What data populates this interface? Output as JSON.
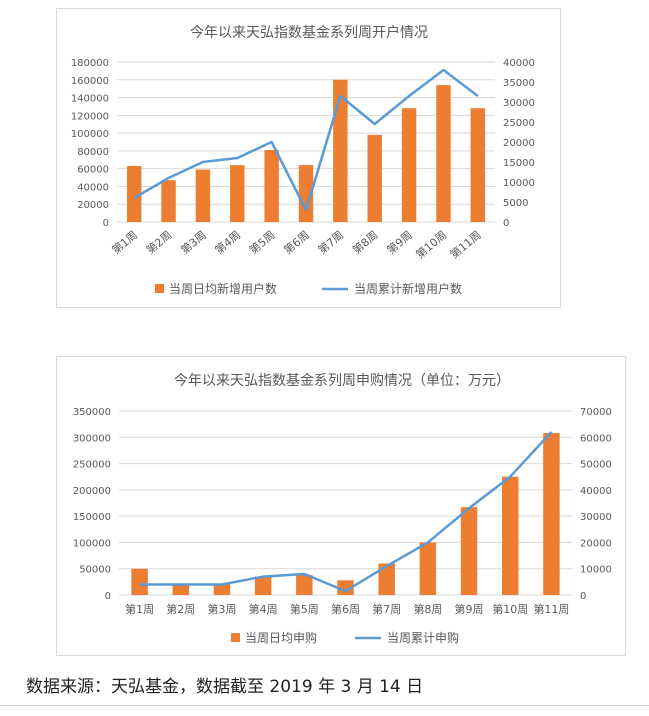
{
  "colors": {
    "bar": "#ED7D31",
    "line": "#5B9BD5",
    "grid": "#D9D9D9",
    "text": "#595959"
  },
  "chart_data": [
    {
      "type": "bar",
      "title": "今年以来天弘指数基金系列周开户情况",
      "categories": [
        "第1周",
        "第2周",
        "第3周",
        "第4周",
        "第5周",
        "第6周",
        "第7周",
        "第8周",
        "第9周",
        "第10周",
        "第11周"
      ],
      "series": [
        {
          "name": "当周日均新增用户数",
          "type": "bar",
          "axis": "left",
          "values": [
            63000,
            47000,
            59000,
            64000,
            81000,
            64000,
            160000,
            98000,
            128000,
            154000,
            128000
          ]
        },
        {
          "name": "当周累计新增用户数",
          "type": "line",
          "axis": "right",
          "values": [
            6000,
            11000,
            15000,
            16000,
            20000,
            3000,
            31500,
            24500,
            31500,
            38000,
            31500
          ]
        }
      ],
      "ylim_left": [
        0,
        180000
      ],
      "yticks_left": [
        "0",
        "20000",
        "40000",
        "60000",
        "80000",
        "100000",
        "120000",
        "140000",
        "160000",
        "180000"
      ],
      "ylim_right": [
        0,
        40000
      ],
      "yticks_right": [
        "0",
        "5000",
        "10000",
        "15000",
        "20000",
        "25000",
        "30000",
        "35000",
        "40000"
      ],
      "grid": true,
      "legend": "bottom"
    },
    {
      "type": "bar",
      "title": "今年以来天弘指数基金系列周申购情况（单位：万元）",
      "categories": [
        "第1周",
        "第2周",
        "第3周",
        "第4周",
        "第5周",
        "第6周",
        "第7周",
        "第8周",
        "第9周",
        "第10周",
        "第11周"
      ],
      "series": [
        {
          "name": "当周日均申购",
          "type": "bar",
          "axis": "left",
          "values": [
            50000,
            20000,
            22000,
            35000,
            38000,
            28000,
            60000,
            100000,
            167000,
            225000,
            308000
          ]
        },
        {
          "name": "当周累计申购",
          "type": "line",
          "axis": "right",
          "values": [
            4000,
            4000,
            4000,
            7000,
            8000,
            1500,
            11000,
            20000,
            33000,
            45000,
            62000
          ]
        }
      ],
      "ylim_left": [
        0,
        350000
      ],
      "yticks_left": [
        "0",
        "50000",
        "100000",
        "150000",
        "200000",
        "250000",
        "300000",
        "350000"
      ],
      "ylim_right": [
        0,
        70000
      ],
      "yticks_right": [
        "0",
        "10000",
        "20000",
        "30000",
        "40000",
        "50000",
        "60000",
        "70000"
      ],
      "grid": true,
      "legend": "bottom"
    }
  ],
  "source_text": "数据来源：天弘基金，数据截至 2019 年 3 月 14 日"
}
